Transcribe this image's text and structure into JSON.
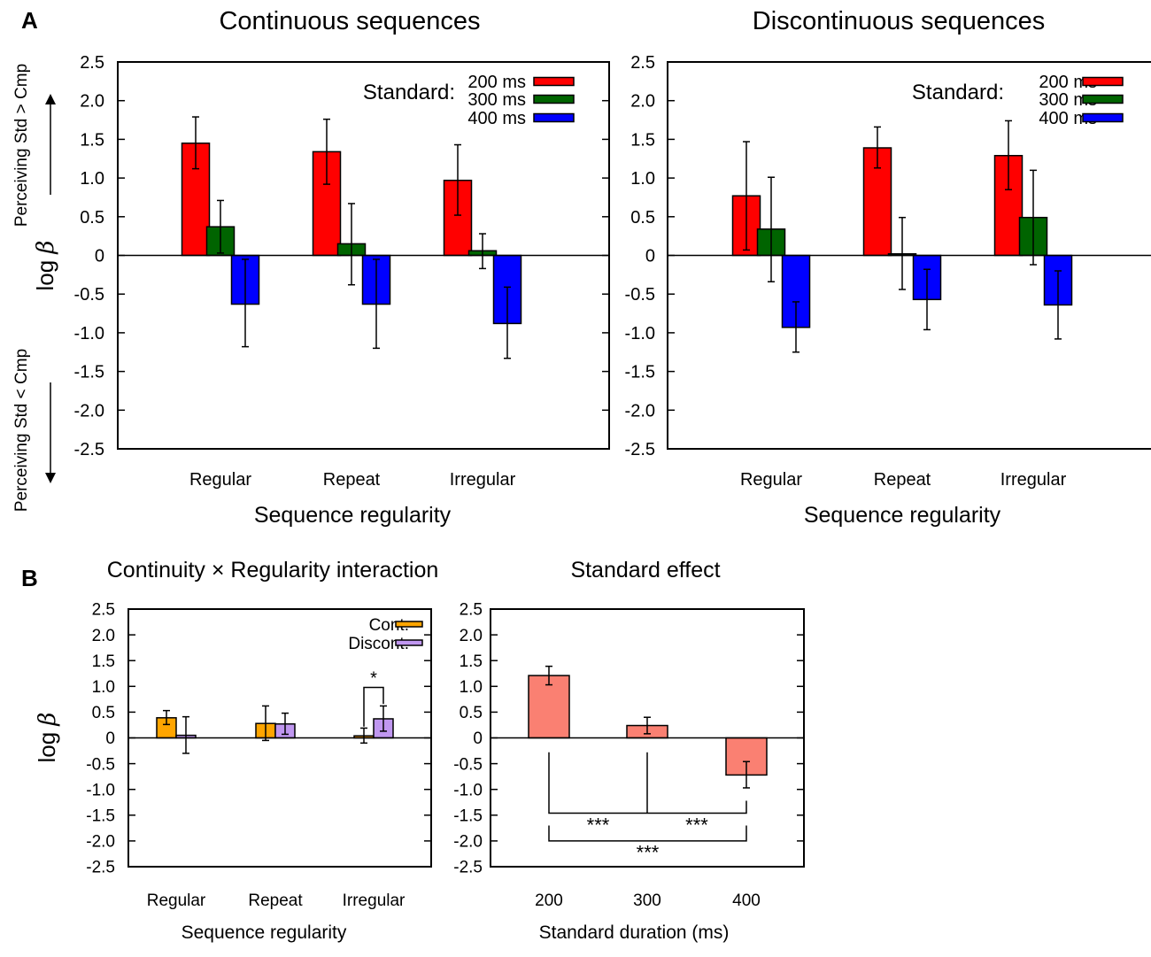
{
  "panel_labels": {
    "a": "A",
    "b": "B"
  },
  "ylabel_text": "log",
  "ylabel_symbol": "β",
  "side_labels": {
    "up": "Perceiving Std > Cmp",
    "down": "Perceiving Std < Cmp"
  },
  "colors": {
    "c200": "#ff0000",
    "c300": "#006400",
    "c400": "#0000ff",
    "cont": "#ffa500",
    "discont": "#c097f0",
    "std": "#fa8072"
  },
  "chart_data": [
    {
      "type": "bar",
      "title": "Continuous sequences",
      "xlabel": "Sequence regularity",
      "ylabel": "log β",
      "ylim": [
        -2.5,
        2.5
      ],
      "yticks": [
        2.5,
        2.0,
        1.5,
        1.0,
        0.5,
        0,
        -0.5,
        -1.0,
        -1.5,
        -2.0,
        -2.5
      ],
      "ytick_labels": [
        "2.5",
        "2.0",
        "1.5",
        "1.0",
        "0.5",
        "0",
        "-0.5",
        "-1.0",
        "-1.5",
        "-2.0",
        "-2.5"
      ],
      "categories": [
        "Regular",
        "Repeat",
        "Irregular"
      ],
      "legend_title": "Standard:",
      "series": [
        {
          "name": "200 ms",
          "color": "#ff0000",
          "values": [
            1.45,
            1.34,
            0.97
          ],
          "err_low": [
            1.12,
            0.92,
            0.52
          ],
          "err_high": [
            1.79,
            1.76,
            1.43
          ]
        },
        {
          "name": "300 ms",
          "color": "#006400",
          "values": [
            0.37,
            0.15,
            0.06
          ],
          "err_low": [
            0.03,
            -0.38,
            -0.17
          ],
          "err_high": [
            0.71,
            0.67,
            0.28
          ]
        },
        {
          "name": "400 ms",
          "color": "#0000ff",
          "values": [
            -0.63,
            -0.63,
            -0.88
          ],
          "err_low": [
            -1.18,
            -1.2,
            -1.33
          ],
          "err_high": [
            -0.05,
            -0.05,
            -0.41
          ]
        }
      ]
    },
    {
      "type": "bar",
      "title": "Discontinuous sequences",
      "xlabel": "Sequence regularity",
      "ylabel": "log β",
      "ylim": [
        -2.5,
        2.5
      ],
      "yticks": [
        2.5,
        2.0,
        1.5,
        1.0,
        0.5,
        0,
        -0.5,
        -1.0,
        -1.5,
        -2.0,
        -2.5
      ],
      "ytick_labels": [
        "2.5",
        "2.0",
        "1.5",
        "1.0",
        "0.5",
        "0",
        "-0.5",
        "-1.0",
        "-1.5",
        "-2.0",
        "-2.5"
      ],
      "categories": [
        "Regular",
        "Repeat",
        "Irregular"
      ],
      "legend_title": "Standard:",
      "series": [
        {
          "name": "200 ms",
          "color": "#ff0000",
          "values": [
            0.77,
            1.39,
            1.29
          ],
          "err_low": [
            0.07,
            1.13,
            0.85
          ],
          "err_high": [
            1.47,
            1.66,
            1.74
          ]
        },
        {
          "name": "300 ms",
          "color": "#006400",
          "values": [
            0.34,
            0.02,
            0.49
          ],
          "err_low": [
            -0.34,
            -0.44,
            -0.12
          ],
          "err_high": [
            1.01,
            0.49,
            1.1
          ]
        },
        {
          "name": "400 ms",
          "color": "#0000ff",
          "values": [
            -0.93,
            -0.57,
            -0.64
          ],
          "err_low": [
            -1.25,
            -0.96,
            -1.08
          ],
          "err_high": [
            -0.6,
            -0.18,
            -0.2
          ]
        }
      ]
    },
    {
      "type": "bar",
      "title": "Continuity × Regularity interaction",
      "xlabel": "Sequence regularity",
      "ylabel": "log β",
      "ylim": [
        -2.5,
        2.5
      ],
      "yticks": [
        2.5,
        2.0,
        1.5,
        1.0,
        0.5,
        0,
        -0.5,
        -1.0,
        -1.5,
        -2.0,
        -2.5
      ],
      "ytick_labels": [
        "2.5",
        "2.0",
        "1.5",
        "1.0",
        "0.5",
        "0",
        "-0.5",
        "-1.0",
        "-1.5",
        "-2.0",
        "-2.5"
      ],
      "categories": [
        "Regular",
        "Repeat",
        "Irregular"
      ],
      "legend_title": "",
      "series": [
        {
          "name": "Cont.",
          "color": "#ffa500",
          "values": [
            0.39,
            0.28,
            0.04
          ],
          "err_low": [
            0.26,
            -0.05,
            -0.1
          ],
          "err_high": [
            0.53,
            0.62,
            0.19
          ]
        },
        {
          "name": "Discont.",
          "color": "#c097f0",
          "values": [
            0.05,
            0.27,
            0.37
          ],
          "err_low": [
            -0.3,
            0.07,
            0.13
          ],
          "err_high": [
            0.41,
            0.48,
            0.62
          ]
        }
      ],
      "annotations": [
        {
          "label": "*",
          "category": "Irregular"
        }
      ]
    },
    {
      "type": "bar",
      "title": "Standard effect",
      "xlabel": "Standard duration (ms)",
      "ylabel": "log β",
      "ylim": [
        -2.5,
        2.5
      ],
      "yticks": [
        2.5,
        2.0,
        1.5,
        1.0,
        0.5,
        0,
        -0.5,
        -1.0,
        -1.5,
        -2.0,
        -2.5
      ],
      "ytick_labels": [
        "2.5",
        "2.0",
        "1.5",
        "1.0",
        "0.5",
        "0",
        "-0.5",
        "-1.0",
        "-1.5",
        "-2.0",
        "-2.5"
      ],
      "categories": [
        "200",
        "300",
        "400"
      ],
      "legend_title": "",
      "series": [
        {
          "name": "log β",
          "color": "#fa8072",
          "values": [
            1.21,
            0.24,
            -0.72
          ],
          "err_low": [
            1.03,
            0.08,
            -0.97
          ],
          "err_high": [
            1.39,
            0.4,
            -0.46
          ]
        }
      ],
      "annotations": [
        {
          "label": "***",
          "from": "200",
          "to": "300"
        },
        {
          "label": "***",
          "from": "300",
          "to": "400"
        },
        {
          "label": "***",
          "from": "200",
          "to": "400"
        }
      ]
    }
  ]
}
